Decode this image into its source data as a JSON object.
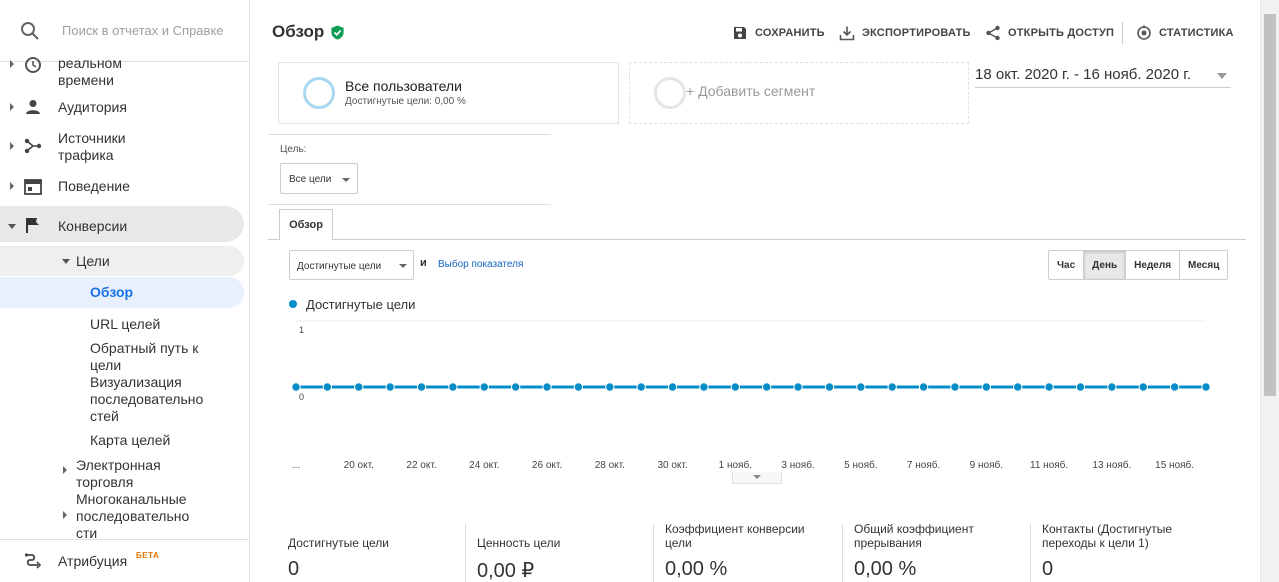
{
  "search": {
    "placeholder": "Поиск в отчетах и Справке"
  },
  "sidebar": {
    "realtime_label": "реальном\nвремени",
    "audience_label": "Аудитория",
    "sources_label": "Источники\nтрафика",
    "behavior_label": "Поведение",
    "conversions_label": "Конверсии",
    "goals_label": "Цели",
    "goals_items": [
      "Обзор",
      "URL целей",
      "Обратный путь к\nцели",
      "Визуализация\nпоследовательно\nстей",
      "Карта целей"
    ],
    "ecommerce_label": "Электронная\nторговля",
    "multichannel_label": "Многоканальные\nпоследовательно\nсти",
    "attribution_label": "Атрибуция",
    "beta_label": "БЕТА"
  },
  "header": {
    "title": "Обзор",
    "buttons": {
      "save": "СОХРАНИТЬ",
      "export": "ЭКСПОРТИРОВАТЬ",
      "share": "ОТКРЫТЬ ДОСТУП",
      "stats": "СТАТИСТИКА"
    }
  },
  "segments": {
    "all_users": "Все пользователи",
    "all_users_sub": "Достигнутые цели: 0,00 %",
    "add_segment": "+ Добавить сегмент"
  },
  "date_range": "18 окт. 2020 г. - 16 нояб. 2020 г.",
  "goal_filter": {
    "label": "Цель:",
    "value": "Все цели"
  },
  "tabs": {
    "overview": "Обзор"
  },
  "metric": {
    "select": "Достигнутые цели",
    "and": "и",
    "link": "Выбор показателя"
  },
  "periods": [
    "Час",
    "День",
    "Неделя",
    "Месяц"
  ],
  "active_period": "День",
  "chart_data": {
    "type": "line",
    "series": [
      {
        "name": "Достигнутые цели",
        "color": "#058dc7",
        "values": [
          0,
          0,
          0,
          0,
          0,
          0,
          0,
          0,
          0,
          0,
          0,
          0,
          0,
          0,
          0,
          0,
          0,
          0,
          0,
          0,
          0,
          0,
          0,
          0,
          0,
          0,
          0,
          0,
          0,
          0
        ]
      }
    ],
    "y_ticks": [
      "1",
      "0"
    ],
    "ylim": [
      0,
      1
    ],
    "x_labels": [
      "...",
      "20 окт.",
      "22 окт.",
      "24 окт.",
      "26 окт.",
      "28 окт.",
      "30 окт.",
      "1 нояб.",
      "3 нояб.",
      "5 нояб.",
      "7 нояб.",
      "9 нояб.",
      "11 нояб.",
      "13 нояб.",
      "15 нояб."
    ],
    "grid": true,
    "legend": "top-left"
  },
  "summary": [
    {
      "label": "Достигнутые цели",
      "value": "0"
    },
    {
      "label": "Ценность цели",
      "value": "0,00 ₽"
    },
    {
      "label": "Коэффициент конверсии\nцели",
      "value": "0,00 %"
    },
    {
      "label": "Общий коэффициент\nпрерывания",
      "value": "0,00 %"
    },
    {
      "label": "Контакты (Достигнутые\nпереходы к цели 1)",
      "value": "0"
    }
  ]
}
